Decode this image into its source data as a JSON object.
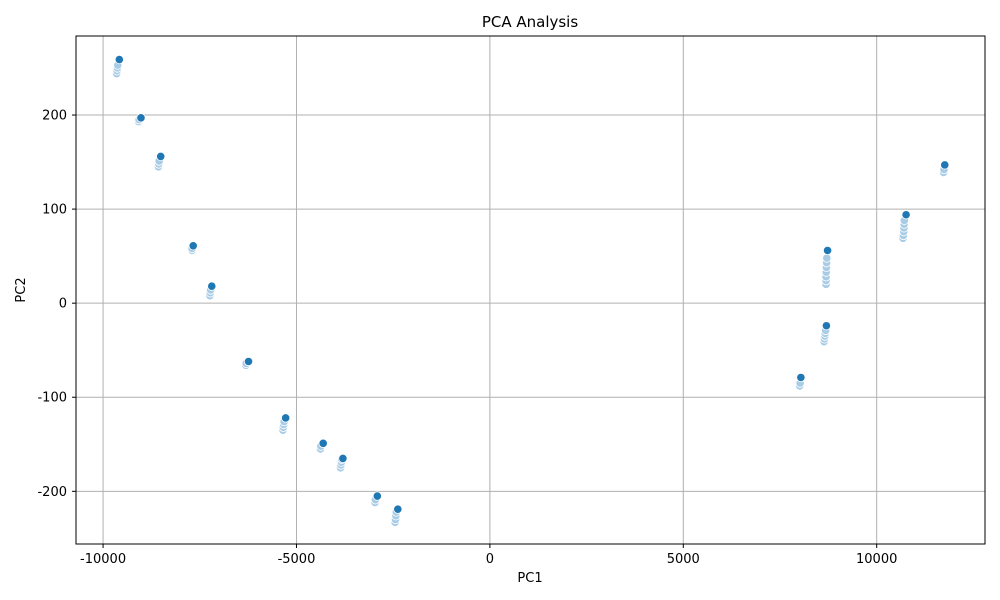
{
  "chart_data": {
    "type": "scatter",
    "title": "PCA Analysis",
    "xlabel": "PC1",
    "ylabel": "PC2",
    "xlim": [
      -10700,
      12800
    ],
    "ylim": [
      -256,
      284
    ],
    "xticks": [
      -10000,
      -5000,
      0,
      5000,
      10000
    ],
    "yticks": [
      -200,
      -100,
      0,
      100,
      200
    ],
    "grid": true,
    "colors": {
      "light": "#a9cce6",
      "dark": "#1f77b4"
    },
    "series": [
      {
        "points": [
          [
            -9650,
            244
          ],
          [
            -9640,
            247
          ],
          [
            -9630,
            250
          ],
          [
            -9620,
            253
          ],
          [
            -9080,
            193
          ],
          [
            -9070,
            195
          ],
          [
            -8570,
            145
          ],
          [
            -8560,
            148
          ],
          [
            -8550,
            151
          ],
          [
            -7700,
            56
          ],
          [
            -7700,
            58
          ],
          [
            -7240,
            8
          ],
          [
            -7230,
            11
          ],
          [
            -7220,
            14
          ],
          [
            -6310,
            -66
          ],
          [
            -6300,
            -64
          ],
          [
            -5350,
            -135
          ],
          [
            -5340,
            -132
          ],
          [
            -5330,
            -129
          ],
          [
            -5320,
            -126
          ],
          [
            -4380,
            -155
          ],
          [
            -4370,
            -152
          ],
          [
            -3860,
            -175
          ],
          [
            -3850,
            -172
          ],
          [
            -3840,
            -169
          ],
          [
            -3830,
            -166
          ],
          [
            -2970,
            -212
          ],
          [
            -2960,
            -209
          ],
          [
            -2450,
            -233
          ],
          [
            -2440,
            -230
          ],
          [
            -2430,
            -226
          ],
          [
            -2420,
            -222
          ],
          [
            8010,
            -88
          ],
          [
            8020,
            -85
          ],
          [
            8640,
            -41
          ],
          [
            8650,
            -38
          ],
          [
            8660,
            -35
          ],
          [
            8670,
            -32
          ],
          [
            8680,
            -29
          ],
          [
            8690,
            20
          ],
          [
            8690,
            24
          ],
          [
            8690,
            28
          ],
          [
            8695,
            33
          ],
          [
            8700,
            38
          ],
          [
            8705,
            43
          ],
          [
            8710,
            48
          ],
          [
            10680,
            69
          ],
          [
            10690,
            72
          ],
          [
            10700,
            76
          ],
          [
            10705,
            80
          ],
          [
            10710,
            84
          ],
          [
            10715,
            88
          ],
          [
            11730,
            139
          ],
          [
            11740,
            142
          ]
        ]
      },
      {
        "points": [
          [
            -9580,
            259
          ],
          [
            -9020,
            197
          ],
          [
            -8510,
            156
          ],
          [
            -7670,
            61
          ],
          [
            -7190,
            18
          ],
          [
            -6240,
            -62
          ],
          [
            -5280,
            -122
          ],
          [
            -4310,
            -149
          ],
          [
            -3800,
            -165
          ],
          [
            -2910,
            -205
          ],
          [
            -2380,
            -219
          ],
          [
            8040,
            -79
          ],
          [
            8700,
            -24
          ],
          [
            8730,
            56
          ],
          [
            10760,
            94
          ],
          [
            11760,
            147
          ]
        ]
      }
    ]
  }
}
